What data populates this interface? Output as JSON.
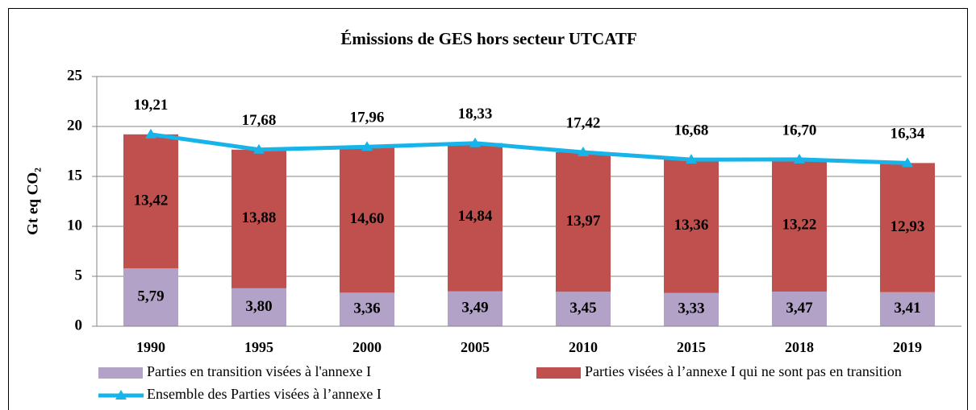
{
  "chart_data": {
    "type": "bar",
    "stacked": true,
    "title": "Émissions de GES hors secteur UTCATF",
    "y_label": "Gt eq CO₂",
    "categories": [
      "1990",
      "1995",
      "2000",
      "2005",
      "2010",
      "2015",
      "2018",
      "2019"
    ],
    "series": [
      {
        "name": "Parties en transition visées à l'annexe I",
        "type": "bar",
        "color": "#b3a2c7",
        "values": [
          5.79,
          3.8,
          3.36,
          3.49,
          3.45,
          3.33,
          3.47,
          3.41
        ],
        "value_labels": [
          "5,79",
          "3,80",
          "3,36",
          "3,49",
          "3,45",
          "3,33",
          "3,47",
          "3,41"
        ]
      },
      {
        "name": "Parties visées à l’annexe I qui ne sont pas en transition",
        "type": "bar",
        "color": "#c0504d",
        "values": [
          13.42,
          13.88,
          14.6,
          14.84,
          13.97,
          13.36,
          13.22,
          12.93
        ],
        "value_labels": [
          "13,42",
          "13,88",
          "14,60",
          "14,84",
          "13,97",
          "13,36",
          "13,22",
          "12,93"
        ]
      },
      {
        "name": "Ensemble des Parties visées à l’annexe I",
        "type": "line",
        "color": "#17b4ea",
        "values": [
          19.21,
          17.68,
          17.96,
          18.33,
          17.42,
          16.68,
          16.7,
          16.34
        ],
        "value_labels": [
          "19,21",
          "17,68",
          "17,96",
          "18,33",
          "17,42",
          "16,68",
          "16,70",
          "16,34"
        ]
      }
    ],
    "ylim": [
      0,
      25
    ],
    "yticks": [
      0,
      5,
      10,
      15,
      20,
      25
    ],
    "grid": true,
    "legend": "bottom"
  }
}
